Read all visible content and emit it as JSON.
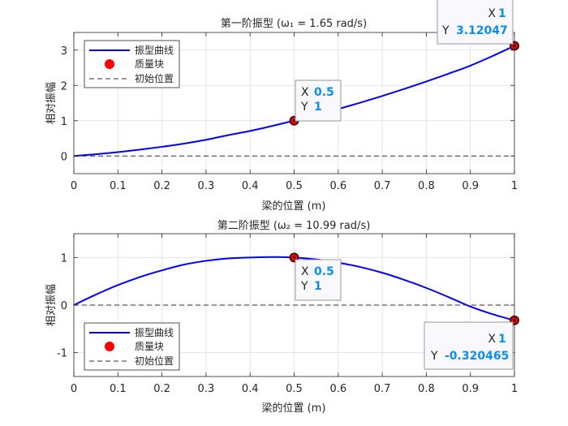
{
  "chart_data": [
    {
      "type": "line",
      "title": "第一阶振型 (ω₁ = 1.65 rad/s)",
      "xlabel": "梁的位置 (m)",
      "ylabel": "相对振幅",
      "xlim": [
        0,
        1
      ],
      "ylim": [
        -0.5,
        3.5
      ],
      "xticks": [
        0,
        0.1,
        0.2,
        0.3,
        0.4,
        0.5,
        0.6,
        0.7,
        0.8,
        0.9,
        1
      ],
      "xtick_labels": [
        "0",
        "0.1",
        "0.2",
        "0.3",
        "0.4",
        "0.5",
        "0.6",
        "0.7",
        "0.8",
        "0.9",
        "1"
      ],
      "yticks": [
        0,
        1,
        2,
        3
      ],
      "ytick_labels": [
        "0",
        "1",
        "2",
        "3"
      ],
      "grid": true,
      "legend": {
        "position": "top-left",
        "entries": [
          "振型曲线",
          "质量块",
          "初始位置"
        ]
      },
      "series": [
        {
          "name": "振型曲线",
          "color": "#0000ff",
          "style": "line",
          "x": [
            0,
            0.05,
            0.1,
            0.15,
            0.2,
            0.25,
            0.3,
            0.35,
            0.4,
            0.45,
            0.5,
            0.55,
            0.6,
            0.65,
            0.7,
            0.75,
            0.8,
            0.85,
            0.9,
            0.95,
            1
          ],
          "y": [
            0,
            0.05,
            0.11,
            0.18,
            0.26,
            0.35,
            0.46,
            0.59,
            0.71,
            0.85,
            1.0,
            1.16,
            1.33,
            1.51,
            1.7,
            1.9,
            2.11,
            2.33,
            2.56,
            2.83,
            3.12047
          ]
        },
        {
          "name": "质量块",
          "color": "#ff0000",
          "style": "marker",
          "x": [
            0.5,
            1
          ],
          "y": [
            1,
            3.12047
          ]
        },
        {
          "name": "初始位置",
          "color": "#333333",
          "style": "dashed",
          "x": [
            0,
            1
          ],
          "y": [
            0,
            0
          ]
        }
      ],
      "datatips": [
        {
          "x_label": "X",
          "x_value": "0.5",
          "y_label": "Y",
          "y_value": "1",
          "point": [
            0.5,
            1
          ]
        },
        {
          "x_label": "X",
          "x_value": "1",
          "y_label": "Y",
          "y_value": "3.12047",
          "point": [
            1,
            3.12047
          ]
        }
      ]
    },
    {
      "type": "line",
      "title": "第二阶振型 (ω₂ = 10.99 rad/s)",
      "xlabel": "梁的位置 (m)",
      "ylabel": "相对振幅",
      "xlim": [
        0,
        1
      ],
      "ylim": [
        -1.5,
        1.5
      ],
      "xticks": [
        0,
        0.1,
        0.2,
        0.3,
        0.4,
        0.5,
        0.6,
        0.7,
        0.8,
        0.9,
        1
      ],
      "xtick_labels": [
        "0",
        "0.1",
        "0.2",
        "0.3",
        "0.4",
        "0.5",
        "0.6",
        "0.7",
        "0.8",
        "0.9",
        "1"
      ],
      "yticks": [
        -1,
        0,
        1
      ],
      "ytick_labels": [
        "-1",
        "0",
        "1"
      ],
      "grid": true,
      "legend": {
        "position": "bottom-left",
        "entries": [
          "振型曲线",
          "质量块",
          "初始位置"
        ]
      },
      "series": [
        {
          "name": "振型曲线",
          "color": "#0000ff",
          "style": "line",
          "x": [
            0,
            0.05,
            0.1,
            0.15,
            0.2,
            0.25,
            0.3,
            0.35,
            0.4,
            0.45,
            0.5,
            0.55,
            0.6,
            0.65,
            0.7,
            0.75,
            0.8,
            0.85,
            0.9,
            0.95,
            1
          ],
          "y": [
            0,
            0.22,
            0.42,
            0.59,
            0.73,
            0.85,
            0.93,
            0.98,
            1.0,
            1.01,
            1.0,
            0.96,
            0.89,
            0.8,
            0.68,
            0.53,
            0.36,
            0.17,
            -0.03,
            -0.19,
            -0.320465
          ]
        },
        {
          "name": "质量块",
          "color": "#ff0000",
          "style": "marker",
          "x": [
            0.5,
            1
          ],
          "y": [
            1,
            -0.320465
          ]
        },
        {
          "name": "初始位置",
          "color": "#333333",
          "style": "dashed",
          "x": [
            0,
            1
          ],
          "y": [
            0,
            0
          ]
        }
      ],
      "datatips": [
        {
          "x_label": "X",
          "x_value": "0.5",
          "y_label": "Y",
          "y_value": "1",
          "point": [
            0.5,
            1
          ]
        },
        {
          "x_label": "X",
          "x_value": "1",
          "y_label": "Y",
          "y_value": "-0.320465",
          "point": [
            1,
            -0.320465
          ]
        }
      ]
    }
  ]
}
